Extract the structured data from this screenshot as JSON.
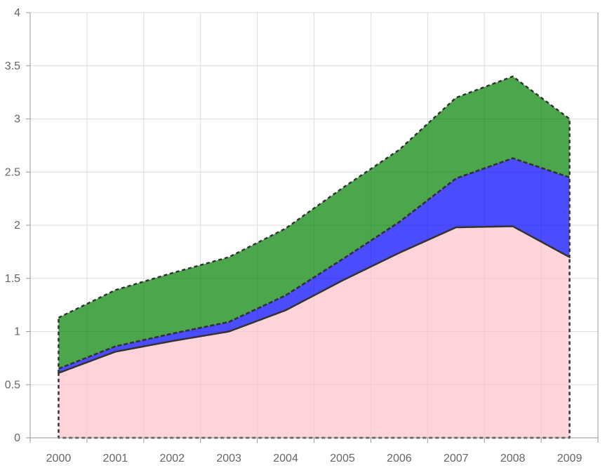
{
  "chart_data": {
    "type": "area",
    "stacked": true,
    "title": "",
    "xlabel": "",
    "ylabel": "",
    "x": [
      "2000",
      "2001",
      "2002",
      "2003",
      "2004",
      "2005",
      "2006",
      "2007",
      "2008",
      "2009"
    ],
    "ylim": [
      0,
      4
    ],
    "yticks": [
      "0",
      "0.5",
      "1",
      "1.5",
      "2",
      "2.5",
      "3",
      "3.5",
      "4"
    ],
    "grid": true,
    "legend": "none",
    "series": [
      {
        "values": [
          0.61,
          0.81,
          0.91,
          1.0,
          1.2,
          1.48,
          1.74,
          1.98,
          1.99,
          1.7
        ],
        "color": "#ffc0cb",
        "opacity": 0.7
      },
      {
        "values": [
          0.04,
          0.05,
          0.07,
          0.09,
          0.14,
          0.2,
          0.29,
          0.46,
          0.64,
          0.75
        ],
        "color": "#0000ff",
        "opacity": 0.7
      },
      {
        "values": [
          0.48,
          0.53,
          0.57,
          0.61,
          0.63,
          0.67,
          0.68,
          0.76,
          0.77,
          0.55
        ],
        "color": "#008000",
        "opacity": 0.7
      }
    ],
    "border_color": "#333333",
    "grid_color": "#dddddd",
    "axis_color": "#999999"
  }
}
